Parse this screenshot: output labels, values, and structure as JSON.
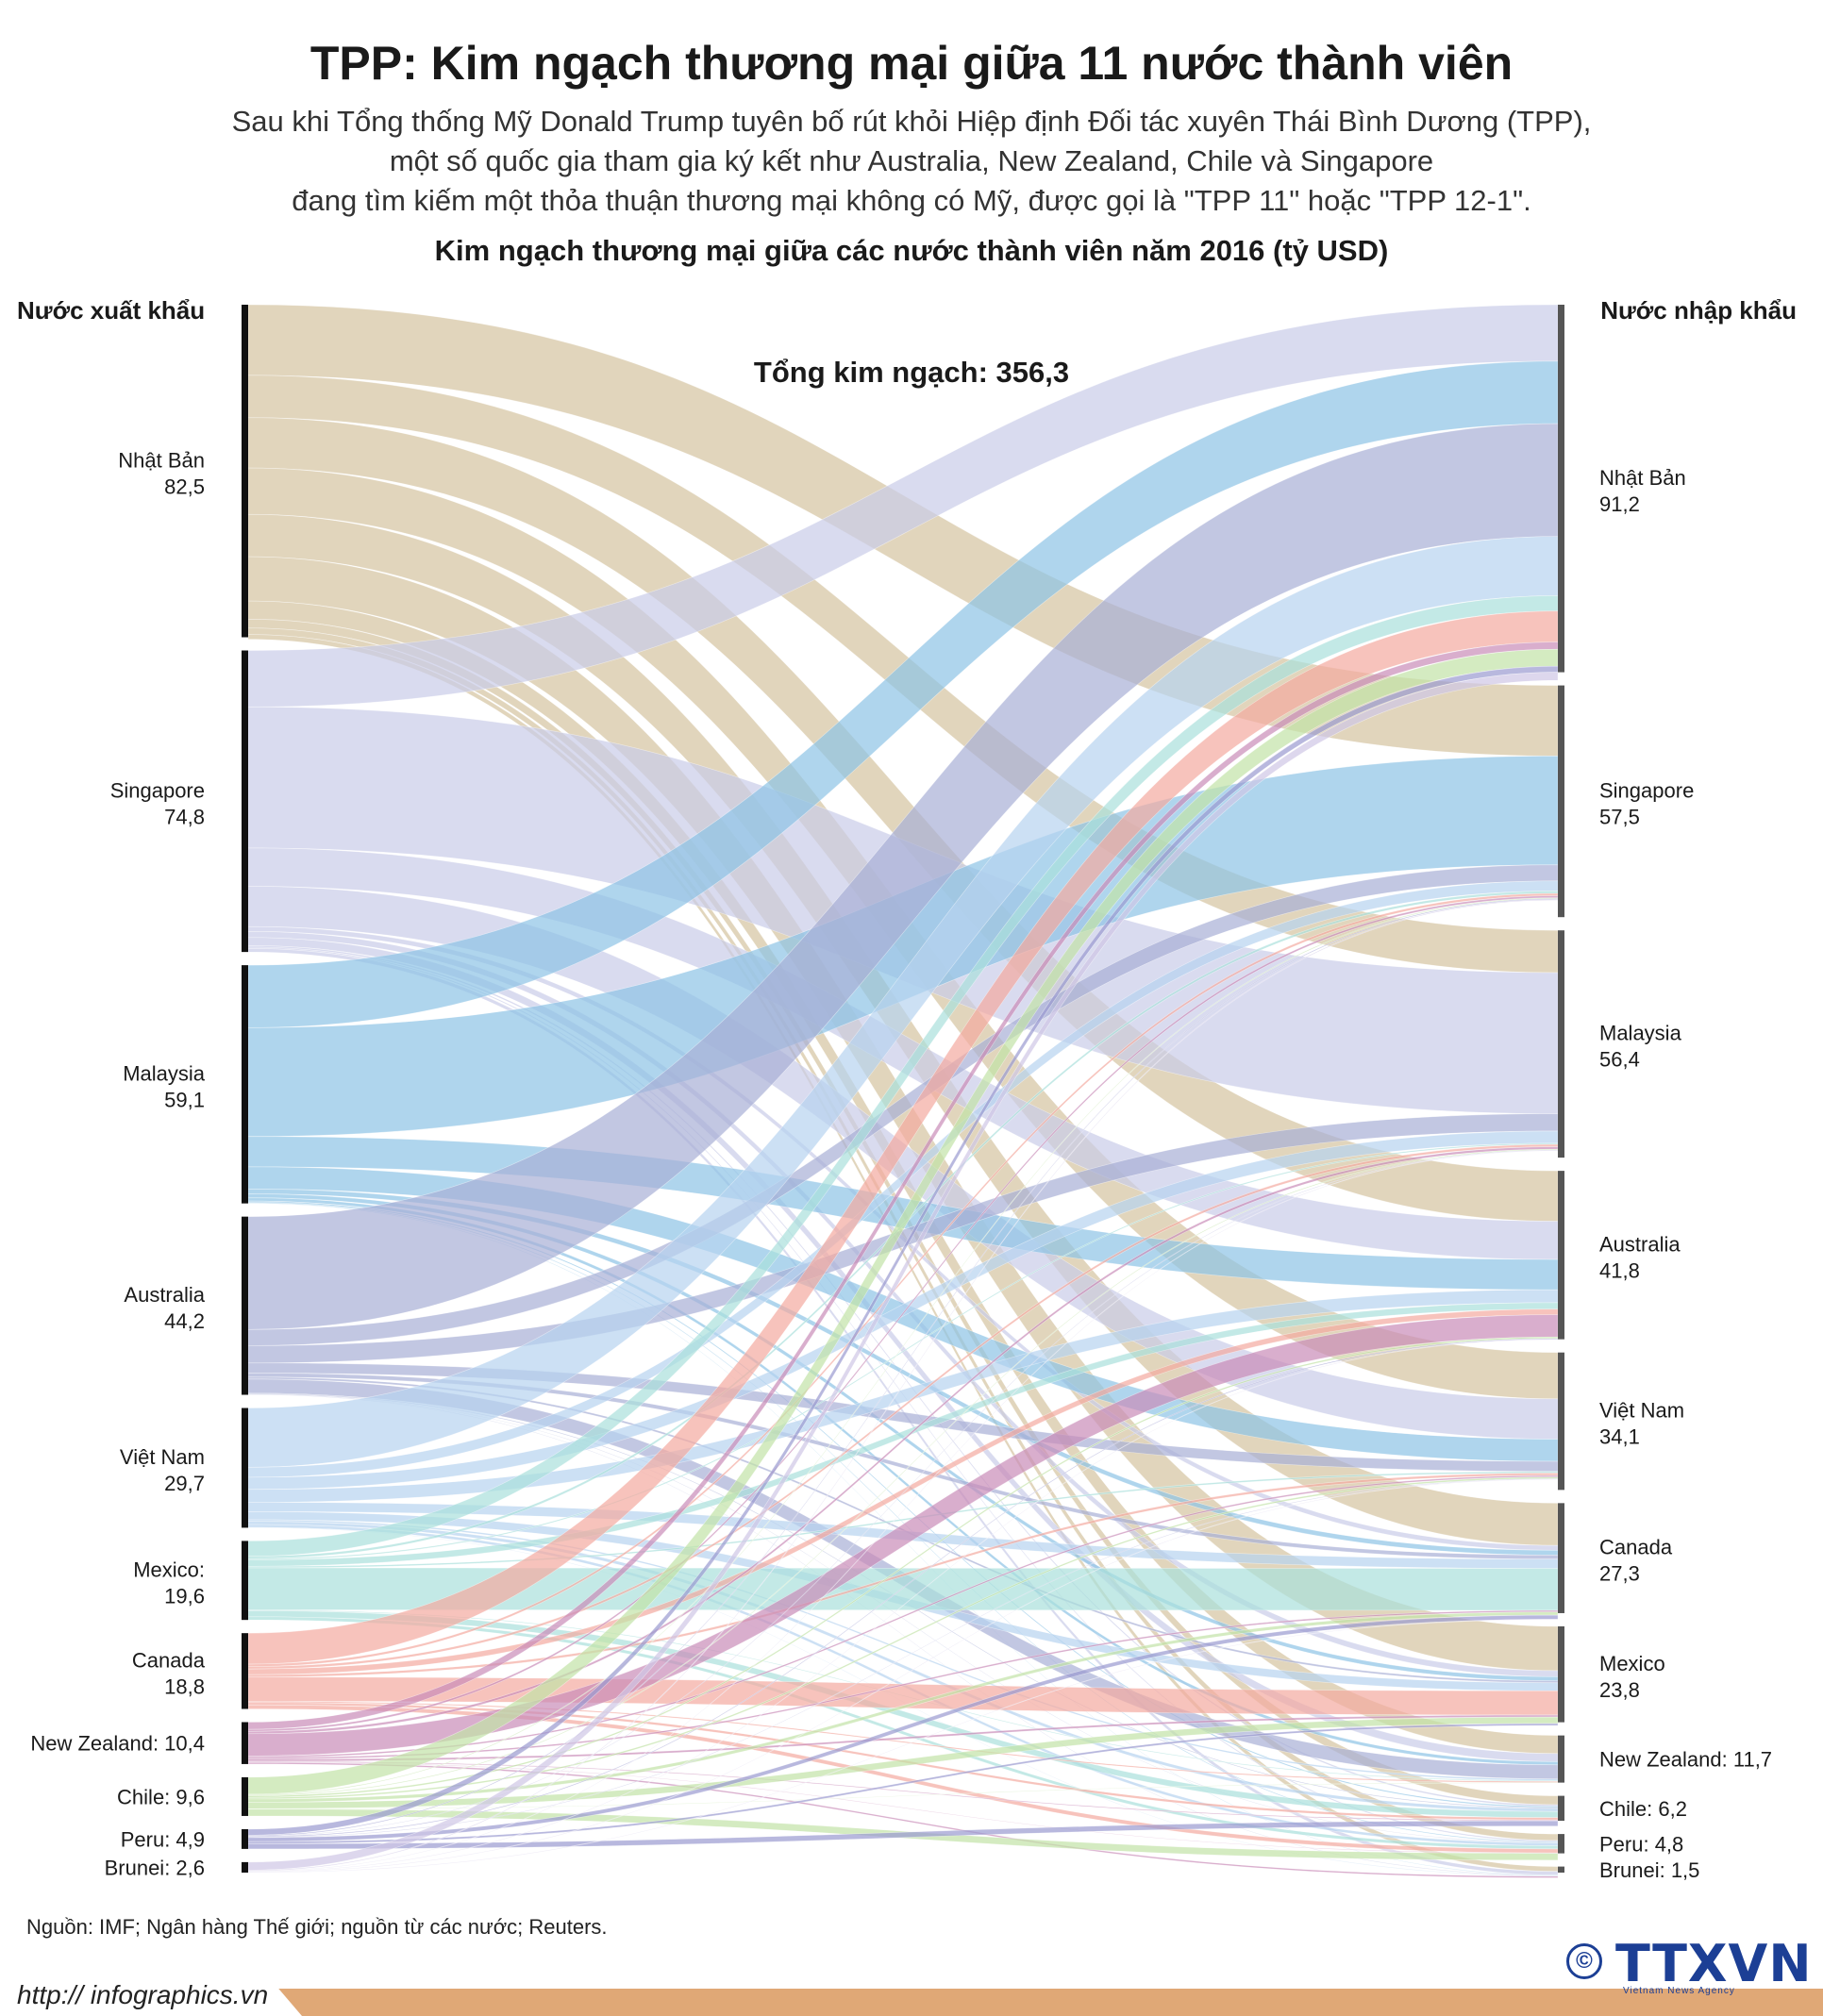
{
  "title": "TPP: Kim ngạch thương mại giữa 11 nước thành viên",
  "subtitle_lines": [
    "Sau khi Tổng thống Mỹ Donald Trump tuyên bố rút khỏi Hiệp định Đối tác xuyên Thái Bình Dương (TPP),",
    "một số quốc gia tham gia ký kết như Australia, New Zealand, Chile và Singapore",
    "đang tìm kiếm một thỏa thuận thương mại không có Mỹ, được gọi là \"TPP 11\" hoặc \"TPP 12-1\"."
  ],
  "chart_data": {
    "type": "sankey",
    "title": "Kim ngạch thương mại giữa các nước thành viên năm 2016 (tỷ USD)",
    "left_header": "Nước xuất khẩu",
    "right_header": "Nước nhập khẩu",
    "total_label": "Tổng kim ngạch: 356,3",
    "exporters": [
      {
        "name": "Nhật Bản",
        "value": 82.5,
        "value_label": "82,5",
        "color": "#d4c39f",
        "inline": false
      },
      {
        "name": "Singapore",
        "value": 74.8,
        "value_label": "74,8",
        "color": "#c9cce8",
        "inline": false
      },
      {
        "name": "Malaysia",
        "value": 59.1,
        "value_label": "59,1",
        "color": "#8dc3e6",
        "inline": false
      },
      {
        "name": "Australia",
        "value": 44.2,
        "value_label": "44,2",
        "color": "#a8afd6",
        "inline": false
      },
      {
        "name": "Việt Nam",
        "value": 29.7,
        "value_label": "29,7",
        "color": "#b7d3ef",
        "inline": false
      },
      {
        "name": "Mexico:",
        "value": 19.6,
        "value_label": "19,6",
        "color": "#a9e0dc",
        "inline": false
      },
      {
        "name": "Canada",
        "value": 18.8,
        "value_label": "18,8",
        "color": "#f4a9a0",
        "inline": false
      },
      {
        "name": "New Zealand",
        "value": 10.4,
        "value_label": "10,4",
        "color": "#c98bb8",
        "inline": true
      },
      {
        "name": "Chile",
        "value": 9.6,
        "value_label": "9,6",
        "color": "#c2e2a6",
        "inline": true
      },
      {
        "name": "Peru",
        "value": 4.9,
        "value_label": "4,9",
        "color": "#9a9ad0",
        "inline": true
      },
      {
        "name": "Brunei",
        "value": 2.6,
        "value_label": "2,6",
        "color": "#cfc6e6",
        "inline": true
      }
    ],
    "importers": [
      {
        "name": "Nhật Bản",
        "value": 91.2,
        "value_label": "91,2",
        "inline": false
      },
      {
        "name": "Singapore",
        "value": 57.5,
        "value_label": "57,5",
        "inline": false
      },
      {
        "name": "Malaysia",
        "value": 56.4,
        "value_label": "56,4",
        "inline": false
      },
      {
        "name": "Australia",
        "value": 41.8,
        "value_label": "41,8",
        "inline": false
      },
      {
        "name": "Việt Nam",
        "value": 34.1,
        "value_label": "34,1",
        "inline": false
      },
      {
        "name": "Canada",
        "value": 27.3,
        "value_label": "27,3",
        "inline": false
      },
      {
        "name": "Mexico",
        "value": 23.8,
        "value_label": "23,8",
        "inline": false
      },
      {
        "name": "New Zealand",
        "value": 11.7,
        "value_label": "11,7",
        "inline": true
      },
      {
        "name": "Chile",
        "value": 6.2,
        "value_label": "6,2",
        "inline": true
      },
      {
        "name": "Peru",
        "value": 4.8,
        "value_label": "4,8",
        "inline": true
      },
      {
        "name": "Brunei",
        "value": 1.5,
        "value_label": "1,5",
        "inline": true
      }
    ],
    "flows": [
      {
        "from": "Nhật Bản",
        "to": "Singapore",
        "value": 17.5
      },
      {
        "from": "Nhật Bản",
        "to": "Malaysia",
        "value": 10.5
      },
      {
        "from": "Nhật Bản",
        "to": "Australia",
        "value": 12.5
      },
      {
        "from": "Nhật Bản",
        "to": "Việt Nam",
        "value": 11.5
      },
      {
        "from": "Nhật Bản",
        "to": "Canada",
        "value": 10.5
      },
      {
        "from": "Nhật Bản",
        "to": "Mexico",
        "value": 11.0
      },
      {
        "from": "Nhật Bản",
        "to": "New Zealand",
        "value": 4.5
      },
      {
        "from": "Nhật Bản",
        "to": "Chile",
        "value": 2.2
      },
      {
        "from": "Nhật Bản",
        "to": "Peru",
        "value": 1.6
      },
      {
        "from": "Nhật Bản",
        "to": "Brunei",
        "value": 1.2
      },
      {
        "from": "Singapore",
        "to": "Nhật Bản",
        "value": 14.0
      },
      {
        "from": "Singapore",
        "to": "Malaysia",
        "value": 35.0
      },
      {
        "from": "Singapore",
        "to": "Australia",
        "value": 9.5
      },
      {
        "from": "Singapore",
        "to": "Việt Nam",
        "value": 10.0
      },
      {
        "from": "Singapore",
        "to": "Canada",
        "value": 1.2
      },
      {
        "from": "Singapore",
        "to": "Mexico",
        "value": 1.5
      },
      {
        "from": "Singapore",
        "to": "New Zealand",
        "value": 2.0
      },
      {
        "from": "Singapore",
        "to": "Chile",
        "value": 0.4
      },
      {
        "from": "Singapore",
        "to": "Peru",
        "value": 0.3
      },
      {
        "from": "Singapore",
        "to": "Brunei",
        "value": 0.9
      },
      {
        "from": "Malaysia",
        "to": "Nhật Bản",
        "value": 15.5
      },
      {
        "from": "Malaysia",
        "to": "Singapore",
        "value": 27.0
      },
      {
        "from": "Malaysia",
        "to": "Australia",
        "value": 7.5
      },
      {
        "from": "Malaysia",
        "to": "Việt Nam",
        "value": 5.5
      },
      {
        "from": "Malaysia",
        "to": "Canada",
        "value": 1.2
      },
      {
        "from": "Malaysia",
        "to": "Mexico",
        "value": 1.0
      },
      {
        "from": "Malaysia",
        "to": "New Zealand",
        "value": 0.8
      },
      {
        "from": "Malaysia",
        "to": "Chile",
        "value": 0.3
      },
      {
        "from": "Malaysia",
        "to": "Peru",
        "value": 0.2
      },
      {
        "from": "Malaysia",
        "to": "Brunei",
        "value": 0.1
      },
      {
        "from": "Australia",
        "to": "Nhật Bản",
        "value": 28.0
      },
      {
        "from": "Australia",
        "to": "Singapore",
        "value": 4.0
      },
      {
        "from": "Australia",
        "to": "Malaysia",
        "value": 4.3
      },
      {
        "from": "Australia",
        "to": "Việt Nam",
        "value": 2.5
      },
      {
        "from": "Australia",
        "to": "Canada",
        "value": 1.0
      },
      {
        "from": "Australia",
        "to": "Mexico",
        "value": 0.5
      },
      {
        "from": "Australia",
        "to": "New Zealand",
        "value": 3.5
      },
      {
        "from": "Australia",
        "to": "Chile",
        "value": 0.2
      },
      {
        "from": "Australia",
        "to": "Peru",
        "value": 0.1
      },
      {
        "from": "Australia",
        "to": "Brunei",
        "value": 0.1
      },
      {
        "from": "Việt Nam",
        "to": "Nhật Bản",
        "value": 14.7
      },
      {
        "from": "Việt Nam",
        "to": "Singapore",
        "value": 2.5
      },
      {
        "from": "Việt Nam",
        "to": "Malaysia",
        "value": 3.0
      },
      {
        "from": "Việt Nam",
        "to": "Australia",
        "value": 3.2
      },
      {
        "from": "Việt Nam",
        "to": "Canada",
        "value": 2.3
      },
      {
        "from": "Việt Nam",
        "to": "Mexico",
        "value": 2.0
      },
      {
        "from": "Việt Nam",
        "to": "New Zealand",
        "value": 0.4
      },
      {
        "from": "Việt Nam",
        "to": "Chile",
        "value": 0.8
      },
      {
        "from": "Việt Nam",
        "to": "Peru",
        "value": 0.7
      },
      {
        "from": "Việt Nam",
        "to": "Brunei",
        "value": 0.1
      },
      {
        "from": "Mexico",
        "to": "Nhật Bản",
        "value": 3.8
      },
      {
        "from": "Mexico",
        "to": "Singapore",
        "value": 0.6
      },
      {
        "from": "Mexico",
        "to": "Malaysia",
        "value": 0.3
      },
      {
        "from": "Mexico",
        "to": "Australia",
        "value": 1.6
      },
      {
        "from": "Mexico",
        "to": "Việt Nam",
        "value": 0.4
      },
      {
        "from": "Mexico",
        "to": "Canada",
        "value": 10.4
      },
      {
        "from": "Mexico",
        "to": "New Zealand",
        "value": 0.2
      },
      {
        "from": "Mexico",
        "to": "Chile",
        "value": 1.5
      },
      {
        "from": "Mexico",
        "to": "Peru",
        "value": 0.8
      },
      {
        "from": "Canada",
        "to": "Nhật Bản",
        "value": 7.7
      },
      {
        "from": "Canada",
        "to": "Singapore",
        "value": 0.6
      },
      {
        "from": "Canada",
        "to": "Malaysia",
        "value": 0.6
      },
      {
        "from": "Canada",
        "to": "Australia",
        "value": 1.4
      },
      {
        "from": "Canada",
        "to": "Việt Nam",
        "value": 0.6
      },
      {
        "from": "Canada",
        "to": "Mexico",
        "value": 6.0
      },
      {
        "from": "Canada",
        "to": "New Zealand",
        "value": 0.3
      },
      {
        "from": "Canada",
        "to": "Chile",
        "value": 0.6
      },
      {
        "from": "Canada",
        "to": "Peru",
        "value": 1.0
      },
      {
        "from": "New Zealand",
        "to": "Nhật Bản",
        "value": 1.8
      },
      {
        "from": "New Zealand",
        "to": "Singapore",
        "value": 0.5
      },
      {
        "from": "New Zealand",
        "to": "Malaysia",
        "value": 0.6
      },
      {
        "from": "New Zealand",
        "to": "Australia",
        "value": 5.5
      },
      {
        "from": "New Zealand",
        "to": "Việt Nam",
        "value": 0.4
      },
      {
        "from": "New Zealand",
        "to": "Canada",
        "value": 0.4
      },
      {
        "from": "New Zealand",
        "to": "Mexico",
        "value": 0.5
      },
      {
        "from": "New Zealand",
        "to": "Chile",
        "value": 0.2
      },
      {
        "from": "New Zealand",
        "to": "Peru",
        "value": 0.1
      },
      {
        "from": "New Zealand",
        "to": "Brunei",
        "value": 0.4
      },
      {
        "from": "Chile",
        "to": "Nhật Bản",
        "value": 4.2
      },
      {
        "from": "Chile",
        "to": "Singapore",
        "value": 0.2
      },
      {
        "from": "Chile",
        "to": "Malaysia",
        "value": 0.2
      },
      {
        "from": "Chile",
        "to": "Australia",
        "value": 0.4
      },
      {
        "from": "Chile",
        "to": "Việt Nam",
        "value": 0.4
      },
      {
        "from": "Chile",
        "to": "Canada",
        "value": 0.8
      },
      {
        "from": "Chile",
        "to": "Mexico",
        "value": 1.6
      },
      {
        "from": "Chile",
        "to": "New Zealand",
        "value": 0.1
      },
      {
        "from": "Chile",
        "to": "Peru",
        "value": 1.7
      },
      {
        "from": "Peru",
        "to": "Nhật Bản",
        "value": 1.5
      },
      {
        "from": "Peru",
        "to": "Singapore",
        "value": 0.2
      },
      {
        "from": "Peru",
        "to": "Malaysia",
        "value": 0.1
      },
      {
        "from": "Peru",
        "to": "Australia",
        "value": 0.2
      },
      {
        "from": "Peru",
        "to": "Việt Nam",
        "value": 0.1
      },
      {
        "from": "Peru",
        "to": "Canada",
        "value": 1.0
      },
      {
        "from": "Peru",
        "to": "Mexico",
        "value": 0.5
      },
      {
        "from": "Peru",
        "to": "Chile",
        "value": 1.3
      },
      {
        "from": "Brunei",
        "to": "Nhật Bản",
        "value": 2.0
      },
      {
        "from": "Brunei",
        "to": "Singapore",
        "value": 0.2
      },
      {
        "from": "Brunei",
        "to": "Malaysia",
        "value": 0.1
      },
      {
        "from": "Brunei",
        "to": "Australia",
        "value": 0.1
      },
      {
        "from": "Brunei",
        "to": "Việt Nam",
        "value": 0.1
      },
      {
        "from": "Brunei",
        "to": "Canada",
        "value": 0.1
      }
    ]
  },
  "source": "Nguồn: IMF; Ngân hàng Thế giới; nguồn từ các nước; Reuters.",
  "footer_url": "http:// infographics.vn",
  "logo": {
    "symbol": "©",
    "text": "TTXVN",
    "subtext": "Vietnam News Agency",
    "color": "#1c3f95"
  },
  "colors": {
    "footer_bar": "#e0a876",
    "left_bar": "#111111",
    "right_bar": "#555555"
  }
}
